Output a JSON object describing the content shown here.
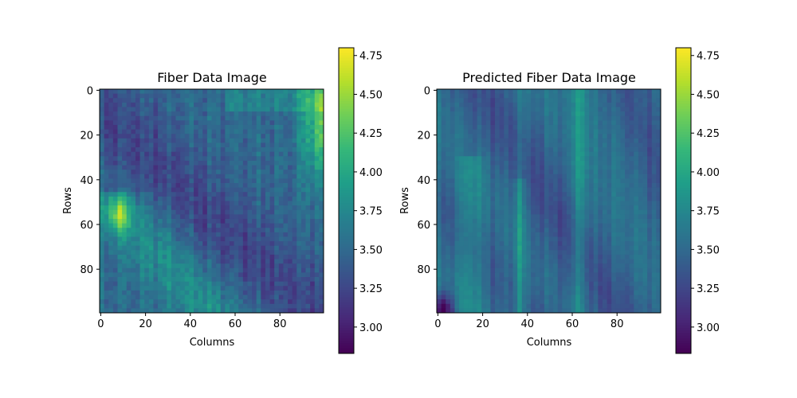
{
  "chart_data": [
    {
      "type": "heatmap",
      "title": "Fiber Data Image",
      "xlabel": "Columns",
      "ylabel": "Rows",
      "rows": 100,
      "cols": 100,
      "x_ticks": [
        0,
        20,
        40,
        60,
        80
      ],
      "y_ticks": [
        0,
        20,
        40,
        60,
        80
      ],
      "colormap": "viridis",
      "value_range": [
        2.83,
        4.8
      ],
      "description_of_values": "Mostly 3.3-3.7; bright column band near 90-100 at top rows (~4.4-4.6); dark diagonal band from top-left toward bottom-right; bright patch near column 10, row 55 (~4.3); vertical stripes throughout"
    },
    {
      "type": "heatmap",
      "title": "Predicted Fiber Data Image",
      "xlabel": "Columns",
      "ylabel": "Rows",
      "rows": 100,
      "cols": 100,
      "x_ticks": [
        0,
        20,
        40,
        60,
        80
      ],
      "y_ticks": [
        0,
        20,
        40,
        60,
        80
      ],
      "colormap": "viridis",
      "value_range": [
        2.83,
        4.8
      ],
      "description_of_values": "Smoother vertical stripes; dark diagonal bands; bright stripes near columns 37 and 64 (~4.2); very dark region at bottom-left (~2.9)"
    }
  ],
  "colorbar": {
    "ticks": [
      "3.00",
      "3.25",
      "3.50",
      "3.75",
      "4.00",
      "4.25",
      "4.50",
      "4.75"
    ],
    "tick_values": [
      3.0,
      3.25,
      3.5,
      3.75,
      4.0,
      4.25,
      4.5,
      4.75
    ],
    "min": 2.83,
    "max": 4.8
  },
  "colors": {
    "viridis": [
      "#440154",
      "#482878",
      "#3e4989",
      "#31688e",
      "#26828e",
      "#1f9e89",
      "#35b779",
      "#6ece58",
      "#b5de2b",
      "#fde725"
    ]
  }
}
